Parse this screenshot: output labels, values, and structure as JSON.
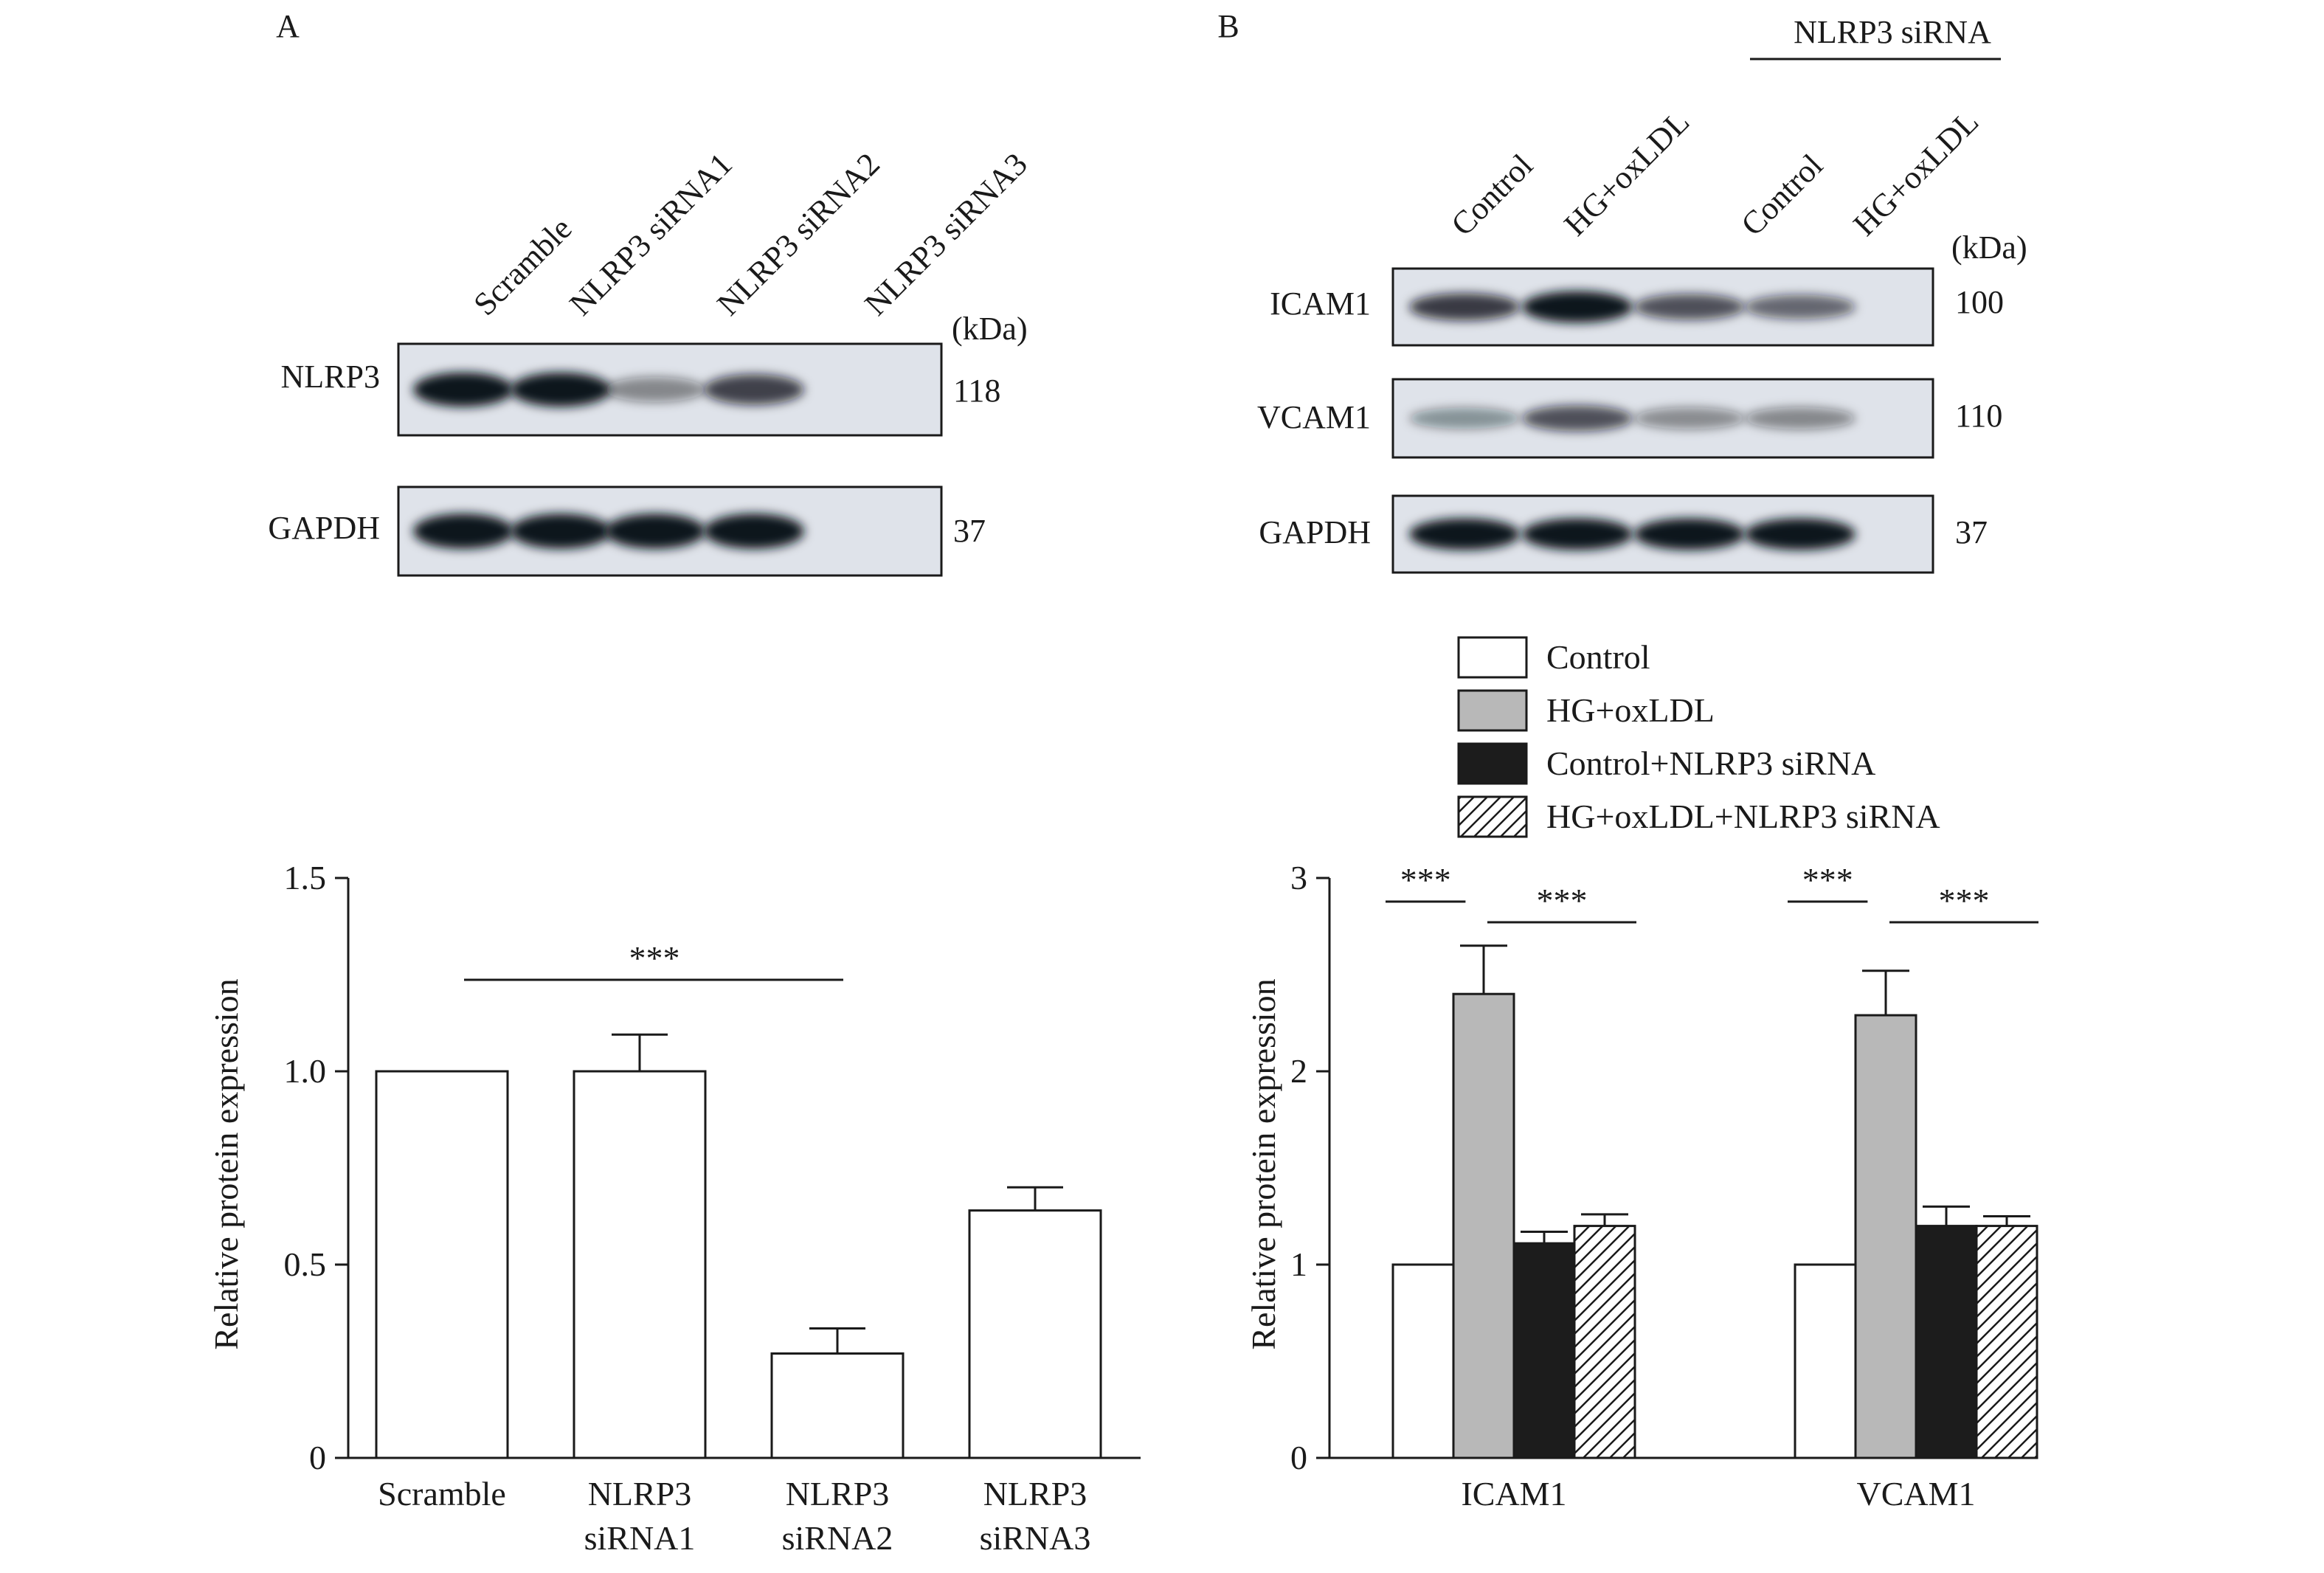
{
  "panelA": {
    "label": "A",
    "lanes": [
      "Scramble",
      "NLRP3 siRNA1",
      "NLRP3 siRNA2",
      "NLRP3 siRNA3"
    ],
    "kda_label": "(kDa)",
    "blots": [
      {
        "name": "NLRP3",
        "kda": "118",
        "band_intensity": [
          0.85,
          0.85,
          0.3,
          0.62
        ]
      },
      {
        "name": "GAPDH",
        "kda": "37",
        "band_intensity": [
          0.9,
          0.9,
          0.9,
          0.9
        ]
      }
    ]
  },
  "panelB": {
    "label": "B",
    "group_header": "NLRP3 siRNA",
    "lanes": [
      "Control",
      "HG+oxLDL",
      "Control",
      "HG+oxLDL"
    ],
    "kda_label": "(kDa)",
    "blots": [
      {
        "name": "ICAM1",
        "kda": "100",
        "band_intensity": [
          0.65,
          0.95,
          0.55,
          0.45
        ]
      },
      {
        "name": "VCAM1",
        "kda": "110",
        "band_intensity": [
          0.25,
          0.55,
          0.28,
          0.3
        ]
      },
      {
        "name": "GAPDH",
        "kda": "37",
        "band_intensity": [
          0.95,
          0.95,
          0.95,
          0.95
        ]
      }
    ]
  },
  "chart_data": [
    {
      "type": "bar",
      "panel": "A",
      "categories": [
        "Scramble",
        "NLRP3 siRNA1",
        "NLRP3 siRNA2",
        "NLRP3 siRNA3"
      ],
      "values": [
        1.0,
        1.0,
        0.27,
        0.64
      ],
      "errors": [
        0,
        0.095,
        0.065,
        0.06
      ],
      "ylabel": "Relative protein expression",
      "ylim": [
        0,
        1.5
      ],
      "yticks": [
        "0",
        "0.5",
        "1.0",
        "1.5"
      ],
      "significance": [
        {
          "from": "Scramble",
          "to": "NLRP3 siRNA2",
          "label": "***"
        }
      ]
    },
    {
      "type": "bar",
      "panel": "B",
      "categories": [
        "ICAM1",
        "VCAM1"
      ],
      "series": [
        {
          "name": "Control",
          "values": [
            1.0,
            1.0
          ],
          "errors": [
            0,
            0
          ],
          "fill": "white"
        },
        {
          "name": "HG+oxLDL",
          "values": [
            2.4,
            2.29
          ],
          "errors": [
            0.25,
            0.23
          ],
          "fill": "gray"
        },
        {
          "name": "Control+NLRP3 siRNA",
          "values": [
            1.11,
            1.2
          ],
          "errors": [
            0.06,
            0.1
          ],
          "fill": "black"
        },
        {
          "name": "HG+oxLDL+NLRP3 siRNA",
          "values": [
            1.2,
            1.2
          ],
          "errors": [
            0.06,
            0.05
          ],
          "fill": "hatch"
        }
      ],
      "ylabel": "Relative protein expression",
      "ylim": [
        0,
        3
      ],
      "yticks": [
        "0",
        "1",
        "2",
        "3"
      ],
      "legend": "top",
      "significance": [
        {
          "category": "ICAM1",
          "from": "Control",
          "to": "HG+oxLDL",
          "label": "***"
        },
        {
          "category": "ICAM1",
          "from": "HG+oxLDL",
          "to": "HG+oxLDL+NLRP3 siRNA",
          "label": "***"
        },
        {
          "category": "VCAM1",
          "from": "Control",
          "to": "HG+oxLDL",
          "label": "***"
        },
        {
          "category": "VCAM1",
          "from": "HG+oxLDL",
          "to": "HG+oxLDL+NLRP3 siRNA",
          "label": "***"
        }
      ]
    }
  ],
  "colors": {
    "gray_bar": "#b8b8b8",
    "black_bar": "#1c1c1c",
    "blot_bg": "#dfe3ea",
    "ink": "#1a1a1a"
  }
}
